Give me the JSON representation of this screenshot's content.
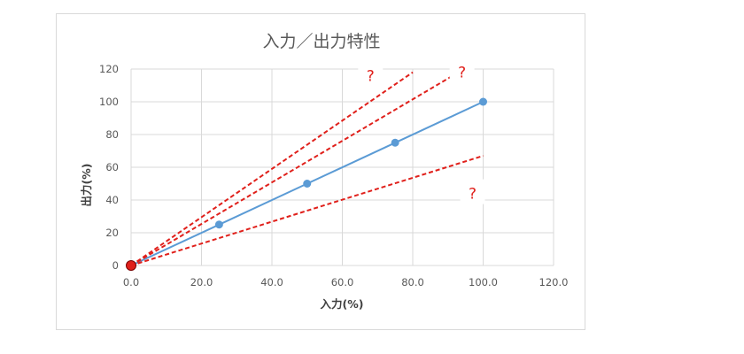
{
  "chart_data": {
    "type": "line",
    "title": "入力／出力特性",
    "xlabel": "入力(%)",
    "ylabel": "出力(%)",
    "xlim": [
      0,
      120
    ],
    "ylim": [
      0,
      120
    ],
    "x_ticks": [
      "0.0",
      "20.0",
      "40.0",
      "60.0",
      "80.0",
      "100.0",
      "120.0"
    ],
    "y_ticks": [
      "0",
      "20",
      "40",
      "60",
      "80",
      "100",
      "120"
    ],
    "grid": true,
    "legend": "none",
    "series": [
      {
        "kind": "measured",
        "color": "#5b9bd5",
        "x": [
          0,
          25,
          50,
          75,
          100
        ],
        "y": [
          0,
          25,
          50,
          75,
          100
        ]
      },
      {
        "kind": "dashed",
        "color": "#e0201b",
        "x": [
          0,
          80
        ],
        "y": [
          0,
          118
        ]
      },
      {
        "kind": "dashed",
        "color": "#e0201b",
        "x": [
          0,
          93
        ],
        "y": [
          0,
          118
        ]
      },
      {
        "kind": "dashed",
        "color": "#e0201b",
        "x": [
          0,
          100
        ],
        "y": [
          0,
          67
        ]
      }
    ],
    "origin_marker": {
      "x": 0,
      "y": 0,
      "color": "#e0201b"
    },
    "annotations": [
      {
        "text": "?",
        "x": 68,
        "y": 116
      },
      {
        "text": "?",
        "x": 94,
        "y": 118
      },
      {
        "text": "?",
        "x": 97,
        "y": 44
      }
    ]
  }
}
